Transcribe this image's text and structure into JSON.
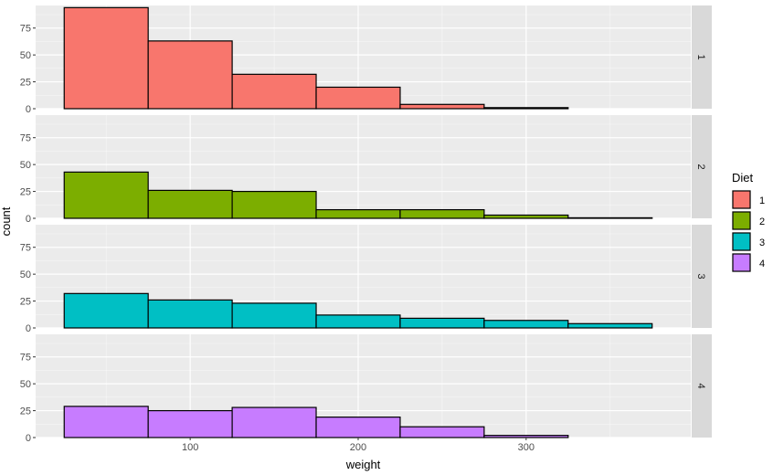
{
  "chart_data": {
    "type": "bar",
    "subtype": "faceted-histogram",
    "xlabel": "weight",
    "ylabel": "count",
    "xlim": [
      8,
      398
    ],
    "ylim": [
      0,
      96
    ],
    "x_ticks": [
      100,
      200,
      300
    ],
    "x_tick_labels": [
      "100",
      "200",
      "300"
    ],
    "y_ticks": [
      0,
      25,
      50,
      75
    ],
    "y_tick_labels": [
      "0",
      "25",
      "50",
      "75"
    ],
    "bin_edges": [
      25,
      75,
      125,
      175,
      225,
      275,
      325,
      375
    ],
    "grid": true,
    "facet_by": "Diet",
    "legend": {
      "title": "Diet",
      "placement": "right",
      "entries": [
        "1",
        "2",
        "3",
        "4"
      ]
    },
    "series": [
      {
        "name": "1",
        "color": "#F8766D",
        "values": [
          94,
          63,
          32,
          20,
          4,
          1,
          0
        ]
      },
      {
        "name": "2",
        "color": "#7CAE00",
        "values": [
          43,
          26,
          25,
          8,
          8,
          3,
          0.5
        ]
      },
      {
        "name": "3",
        "color": "#00BFC4",
        "values": [
          32,
          26,
          23,
          12,
          9,
          7,
          4
        ]
      },
      {
        "name": "4",
        "color": "#C77CFF",
        "values": [
          29,
          25,
          28,
          19,
          10,
          2,
          0
        ]
      }
    ]
  }
}
